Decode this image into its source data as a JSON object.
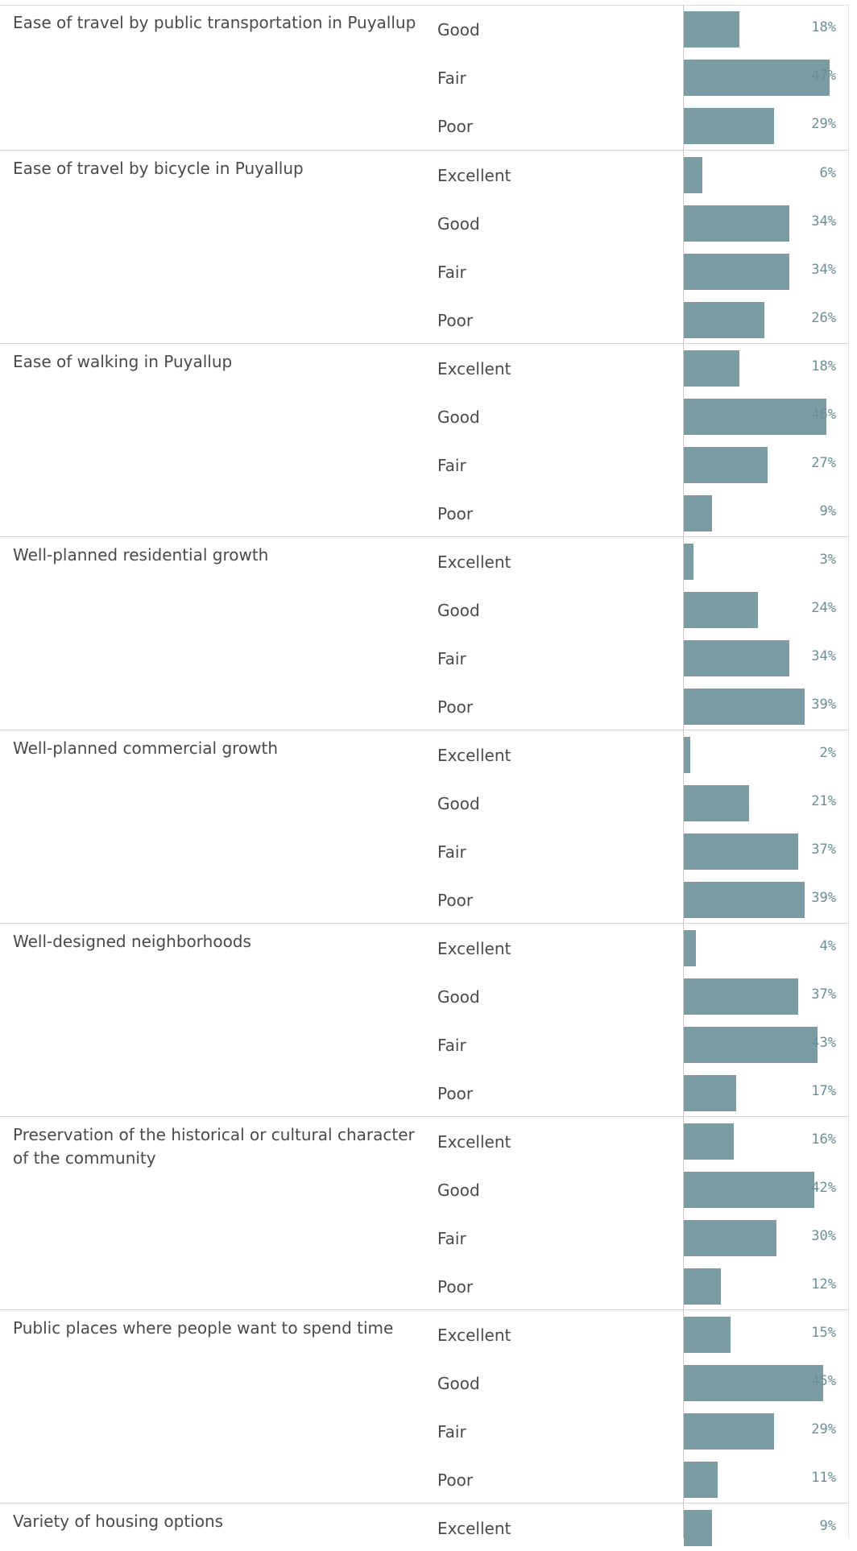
{
  "chart_data": {
    "type": "bar",
    "orientation": "horizontal",
    "xlim": [
      0,
      100
    ],
    "value_suffix": "%",
    "groups": [
      {
        "question": "Ease of travel by public transportation in Puyallup",
        "categories": [
          "Good",
          "Fair",
          "Poor"
        ],
        "values": [
          18,
          47,
          29
        ]
      },
      {
        "question": "Ease of travel by bicycle in Puyallup",
        "categories": [
          "Excellent",
          "Good",
          "Fair",
          "Poor"
        ],
        "values": [
          6,
          34,
          34,
          26
        ]
      },
      {
        "question": "Ease of walking in Puyallup",
        "categories": [
          "Excellent",
          "Good",
          "Fair",
          "Poor"
        ],
        "values": [
          18,
          46,
          27,
          9
        ]
      },
      {
        "question": "Well-planned residential growth",
        "categories": [
          "Excellent",
          "Good",
          "Fair",
          "Poor"
        ],
        "values": [
          3,
          24,
          34,
          39
        ]
      },
      {
        "question": "Well-planned commercial growth",
        "categories": [
          "Excellent",
          "Good",
          "Fair",
          "Poor"
        ],
        "values": [
          2,
          21,
          37,
          39
        ]
      },
      {
        "question": "Well-designed neighborhoods",
        "categories": [
          "Excellent",
          "Good",
          "Fair",
          "Poor"
        ],
        "values": [
          4,
          37,
          43,
          17
        ]
      },
      {
        "question": "Preservation of the historical or cultural character of the community",
        "categories": [
          "Excellent",
          "Good",
          "Fair",
          "Poor"
        ],
        "values": [
          16,
          42,
          30,
          12
        ]
      },
      {
        "question": "Public places where people want to spend time",
        "categories": [
          "Excellent",
          "Good",
          "Fair",
          "Poor"
        ],
        "values": [
          15,
          45,
          29,
          11
        ]
      },
      {
        "question": "Variety of housing options",
        "categories": [
          "Excellent"
        ],
        "values": [
          9
        ]
      }
    ]
  },
  "colors": {
    "bar": "#7b9ca3",
    "value_text": "#6b8f96",
    "label_text": "#4a4a4a",
    "divider": "#d4d4d4"
  }
}
